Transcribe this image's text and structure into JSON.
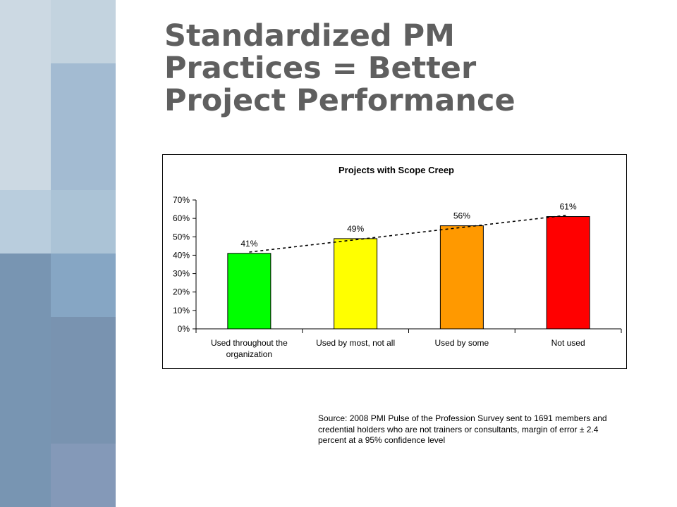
{
  "slide": {
    "title_lines": [
      "Standardized PM",
      "Practices = Better",
      "Project Performance"
    ],
    "source_note": "Source: 2008 PMI Pulse of the Profession Survey sent to 1691 members and credential holders who are not trainers or consultants, margin of error ± 2.4 percent at a 95% confidence level"
  },
  "colors": {
    "title": "#5f5f5f",
    "mosaic": [
      "#c9d6e0",
      "#b9ccdb",
      "#a5bed3",
      "#8fafca",
      "#7e9fbd",
      "#7390ae",
      "#6f8ba9",
      "#8298b7"
    ]
  },
  "chart_data": {
    "type": "bar",
    "title": "Projects with Scope Creep",
    "categories": [
      "Used throughout the organization",
      "Used by most, not all",
      "Used by some",
      "Not used"
    ],
    "category_label_lines": [
      [
        "Used throughout the",
        "organization"
      ],
      [
        "Used by most, not all"
      ],
      [
        "Used by some"
      ],
      [
        "Not used"
      ]
    ],
    "values": [
      41,
      49,
      56,
      61
    ],
    "data_labels": [
      "41%",
      "49%",
      "56%",
      "61%"
    ],
    "bar_colors": [
      "#00ff00",
      "#ffff00",
      "#ff9900",
      "#ff0000"
    ],
    "ylim": [
      0,
      70
    ],
    "yticks": [
      0,
      10,
      20,
      30,
      40,
      50,
      60,
      70
    ],
    "ytick_labels": [
      "0%",
      "10%",
      "20%",
      "30%",
      "40%",
      "50%",
      "60%",
      "70%"
    ],
    "trendline": {
      "style": "dashed",
      "type": "linear"
    },
    "grid": false,
    "legend": "none"
  }
}
